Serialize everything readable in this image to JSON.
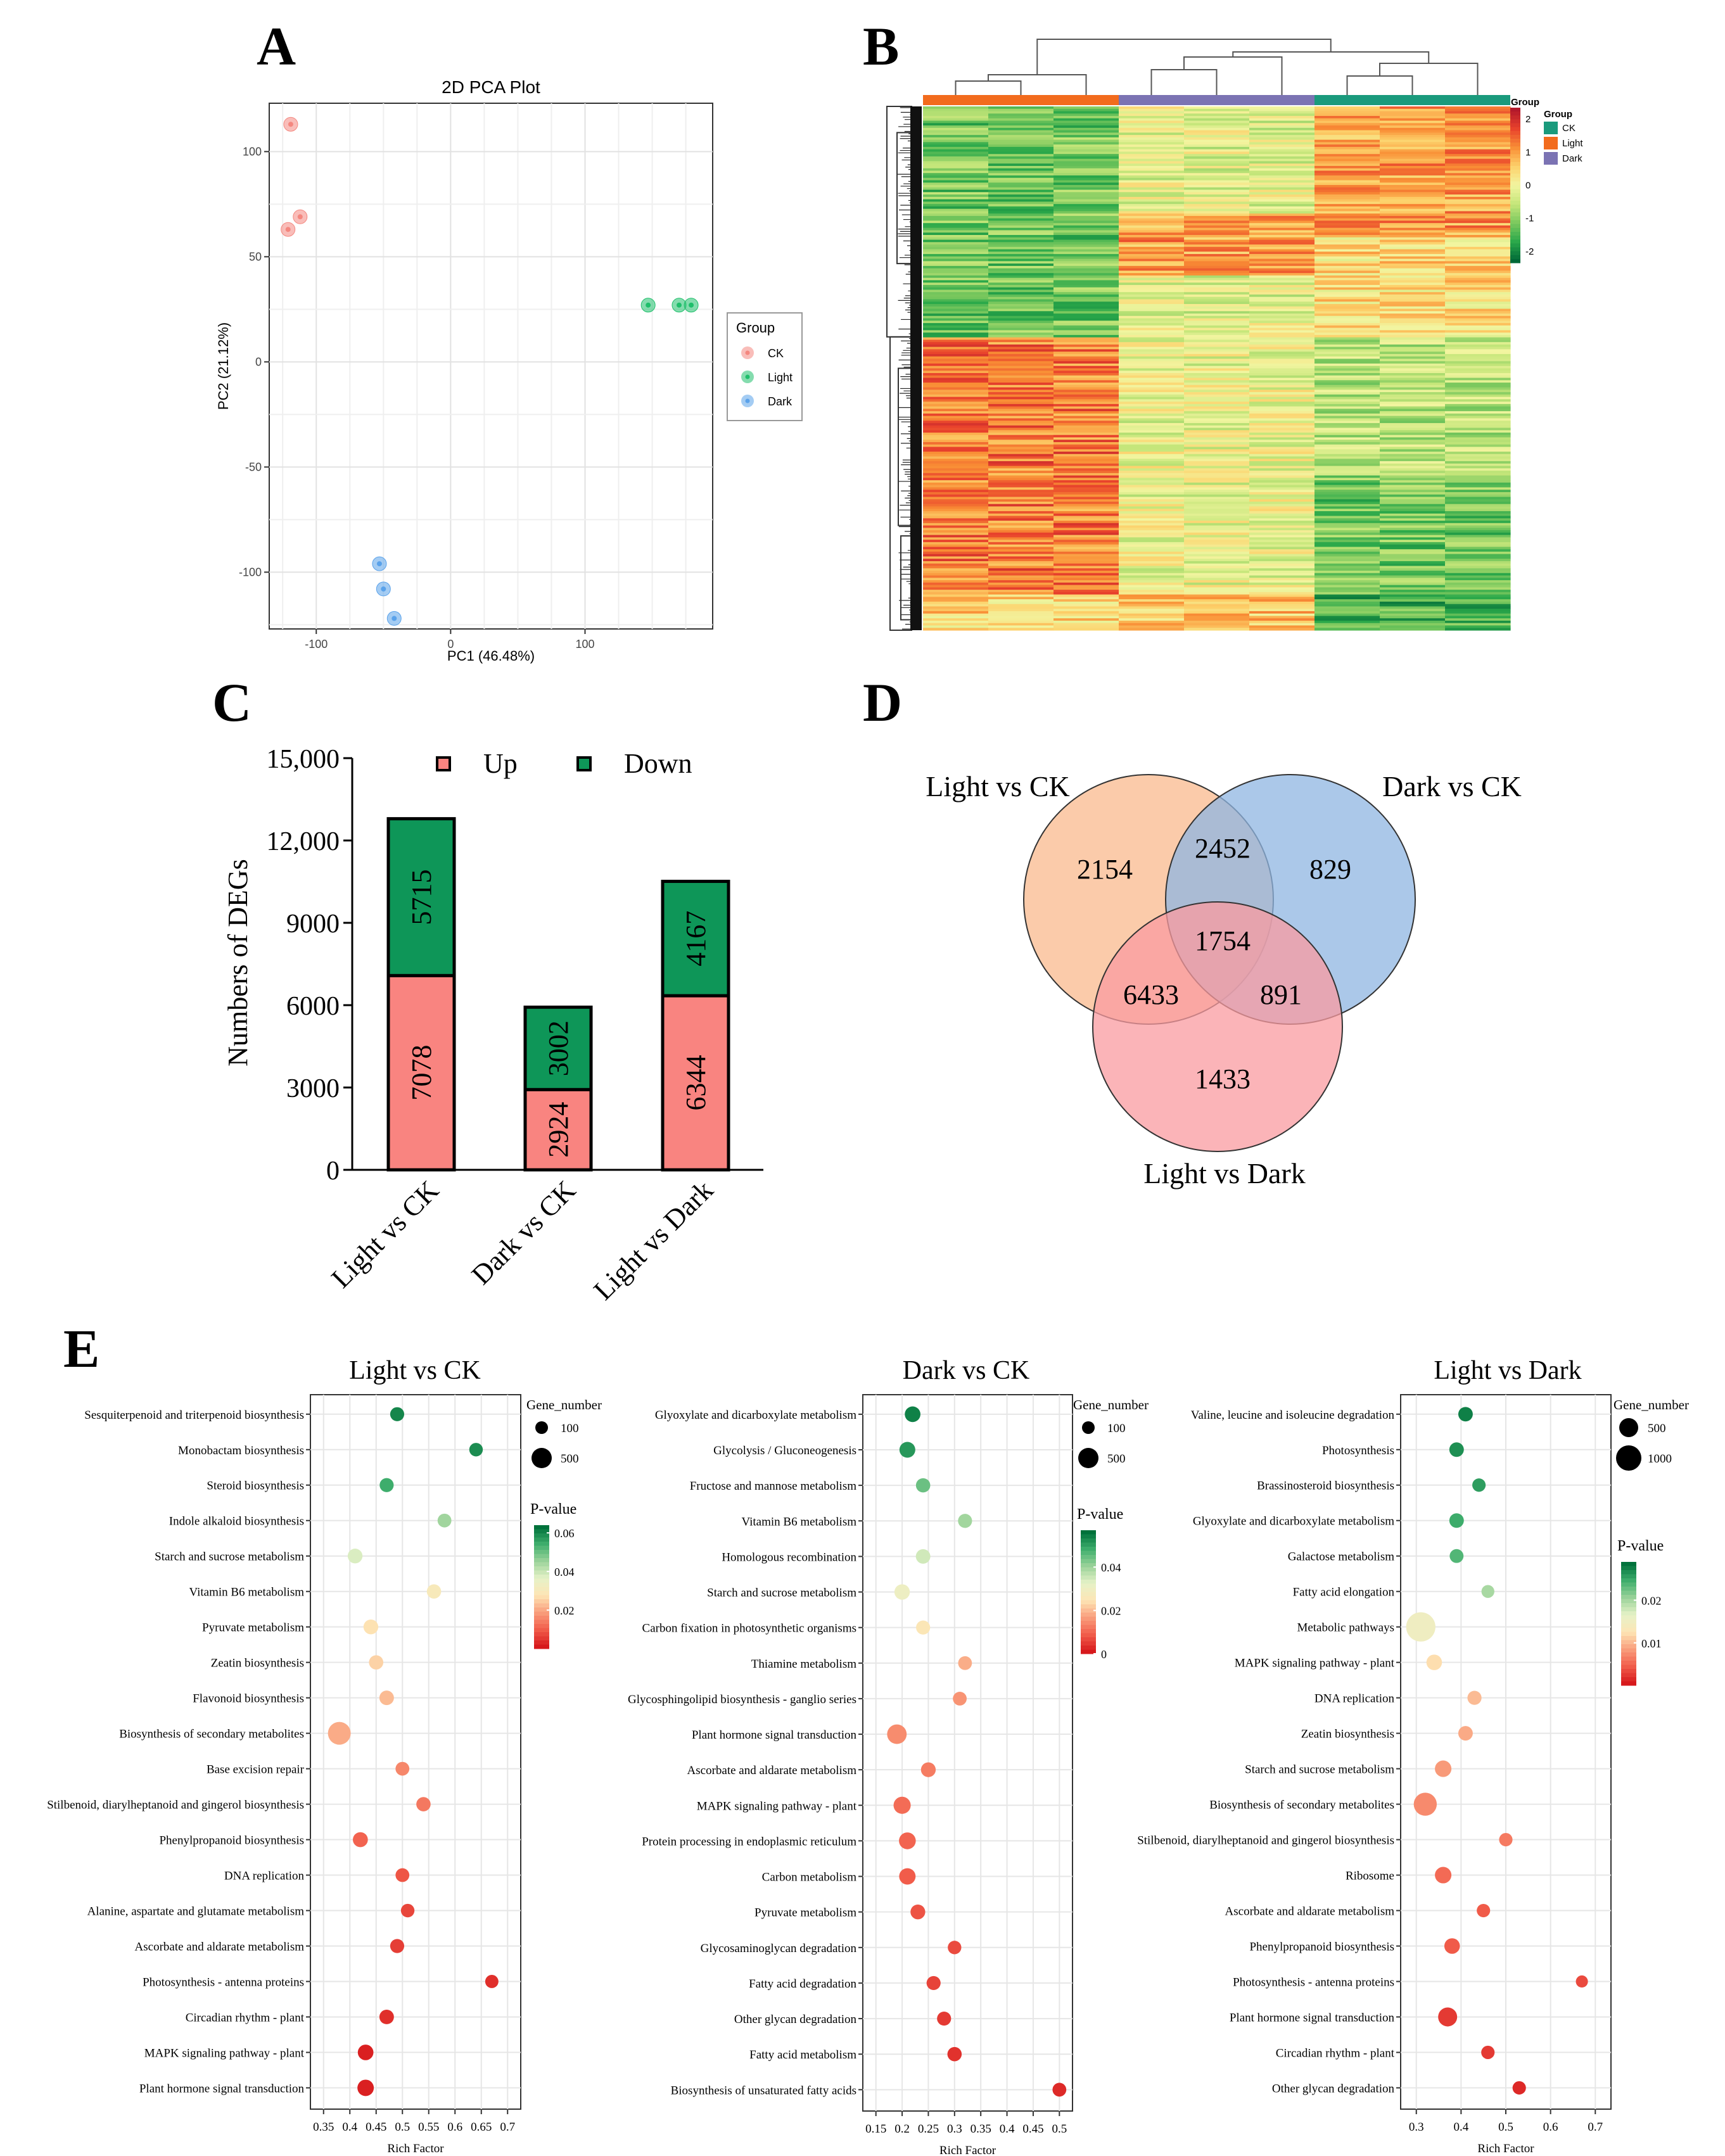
{
  "panel_letters": [
    "A",
    "B",
    "C",
    "D",
    "E"
  ],
  "chart_data": [
    {
      "panel": "A",
      "type": "scatter",
      "title": "2D PCA Plot",
      "xlabel": "PC1 (46.48%)",
      "ylabel": "PC2 (21.12%)",
      "xlim": [
        -135,
        195
      ],
      "ylim": [
        -127,
        123
      ],
      "xticks": [
        -100,
        0,
        100
      ],
      "yticks": [
        100,
        50,
        0,
        -50,
        -100
      ],
      "grid": true,
      "legend": {
        "title": "Group",
        "position": "right"
      },
      "series": [
        {
          "name": "CK",
          "color": "#f4877f",
          "points": [
            [
              -119,
              113
            ],
            [
              -112,
              69
            ],
            [
              -121,
              63
            ]
          ]
        },
        {
          "name": "Light",
          "color": "#1fbf6b",
          "points": [
            [
              147,
              27
            ],
            [
              170,
              27
            ],
            [
              179,
              27
            ]
          ]
        },
        {
          "name": "Dark",
          "color": "#5aa2ea",
          "points": [
            [
              -53,
              -96
            ],
            [
              -50,
              -108
            ],
            [
              -42,
              -122
            ]
          ]
        }
      ]
    },
    {
      "panel": "B",
      "type": "heatmap",
      "legend_title": "Group",
      "groups": [
        {
          "name": "CK",
          "color": "#1a9a7c"
        },
        {
          "name": "Light",
          "color": "#f26b1d"
        },
        {
          "name": "Dark",
          "color": "#7b73b3"
        }
      ],
      "column_group_order": [
        "Light",
        "Dark",
        "CK"
      ],
      "samples_per_group": 3,
      "scale_ticks": [
        2,
        1,
        0,
        -1,
        -2
      ],
      "scale_colors": [
        "#b2182b",
        "#e8412c",
        "#f98e35",
        "#fdd16b",
        "#f2f5a0",
        "#c5e67a",
        "#7bc85e",
        "#2aa84a",
        "#006837"
      ]
    },
    {
      "panel": "C",
      "type": "bar",
      "stacked": true,
      "ylabel": "Numbers of DEGs",
      "xlabel": "",
      "ylim": [
        0,
        15000
      ],
      "yticks": [
        "0",
        "3000",
        "6000",
        "9000",
        "12,000",
        "15,000"
      ],
      "categories": [
        "Light vs CK",
        "Dark vs CK",
        "Light vs Dark"
      ],
      "legend": {
        "position": "top"
      },
      "series": [
        {
          "name": "Up",
          "color": "#f98480",
          "values": [
            7078,
            2924,
            6344
          ]
        },
        {
          "name": "Down",
          "color": "#0e9658",
          "values": [
            5715,
            3002,
            4167
          ]
        }
      ]
    },
    {
      "panel": "D",
      "type": "venn",
      "sets": [
        {
          "name": "Light vs CK",
          "color": "#f9b98e"
        },
        {
          "name": "Dark vs CK",
          "color": "#8fb6e2"
        },
        {
          "name": "Light vs Dark",
          "color": "#f99ba0"
        }
      ],
      "regions": {
        "light_ck_only": "2154",
        "dark_ck_only": "829",
        "light_dark_only": "1433",
        "light_ck_and_dark_ck": "2452",
        "light_ck_and_light_dark": "6433",
        "dark_ck_and_light_dark": "891",
        "all_three": "1754"
      }
    },
    {
      "panel": "E",
      "type": "scatter",
      "title": "Light vs CK",
      "xlabel": "Rich Factor",
      "xlim": [
        0.325,
        0.725
      ],
      "xticks": [
        0.35,
        0.4,
        0.45,
        0.5,
        0.55,
        0.6,
        0.65,
        0.7
      ],
      "size_legend": {
        "title": "Gene_number",
        "values": [
          100,
          500
        ]
      },
      "color_legend": {
        "title": "P-value",
        "ticks": [
          0.06,
          0.04,
          0.02
        ],
        "range": [
          0,
          0.064
        ]
      },
      "terms": [
        "Sesquiterpenoid and triterpenoid biosynthesis",
        "Monobactam biosynthesis",
        "Steroid biosynthesis",
        "Indole alkaloid biosynthesis",
        "Starch and sucrose metabolism",
        "Vitamin B6 metabolism",
        "Pyruvate metabolism",
        "Zeatin biosynthesis",
        "Flavonoid biosynthesis",
        "Biosynthesis of secondary metabolites",
        "Base excision repair",
        "Stilbenoid, diarylheptanoid and gingerol biosynthesis",
        "Phenylpropanoid biosynthesis",
        "DNA replication",
        "Alanine, aspartate and glutamate metabolism",
        "Ascorbate and aldarate metabolism",
        "Photosynthesis - antenna proteins",
        "Circadian rhythm - plant",
        "MAPK signaling pathway - plant",
        "Plant hormone signal transduction"
      ],
      "rich_factor": [
        0.49,
        0.64,
        0.47,
        0.58,
        0.41,
        0.56,
        0.44,
        0.45,
        0.47,
        0.38,
        0.5,
        0.54,
        0.42,
        0.5,
        0.51,
        0.49,
        0.67,
        0.47,
        0.43,
        0.43
      ],
      "gene_number": [
        150,
        130,
        150,
        140,
        180,
        160,
        180,
        160,
        170,
        700,
        140,
        160,
        190,
        140,
        130,
        150,
        120,
        170,
        220,
        260
      ],
      "p_value": [
        0.061,
        0.06,
        0.055,
        0.045,
        0.038,
        0.03,
        0.027,
        0.025,
        0.022,
        0.02,
        0.015,
        0.013,
        0.01,
        0.008,
        0.006,
        0.005,
        0.003,
        0.003,
        0.001,
        0.001
      ]
    },
    {
      "panel": "E",
      "type": "scatter",
      "title": "Dark vs CK",
      "xlabel": "Rich Factor",
      "xlim": [
        0.125,
        0.525
      ],
      "xticks": [
        0.15,
        0.2,
        0.25,
        0.3,
        0.35,
        0.4,
        0.45,
        0.5
      ],
      "size_legend": {
        "title": "Gene_number",
        "values": [
          100,
          500
        ]
      },
      "color_legend": {
        "title": "P-value",
        "ticks": [
          0.04,
          0.02,
          0
        ],
        "range": [
          0,
          0.057
        ]
      },
      "terms": [
        "Glyoxylate and dicarboxylate metabolism",
        "Glycolysis / Gluconeogenesis",
        "Fructose and mannose metabolism",
        "Vitamin B6 metabolism",
        "Homologous recombination",
        "Starch and sucrose metabolism",
        "Carbon fixation in photosynthetic organisms",
        "Thiamine metabolism",
        "Glycosphingolipid biosynthesis - ganglio series",
        "Plant hormone signal transduction",
        "Ascorbate and aldarate metabolism",
        "MAPK signaling pathway - plant",
        "Protein processing in endoplasmic reticulum",
        "Carbon metabolism",
        "Pyruvate metabolism",
        "Glycosaminoglycan degradation",
        "Fatty acid degradation",
        "Other glycan degradation",
        "Fatty acid metabolism",
        "Biosynthesis of unsaturated fatty acids"
      ],
      "rich_factor": [
        0.22,
        0.21,
        0.24,
        0.32,
        0.24,
        0.2,
        0.24,
        0.32,
        0.31,
        0.19,
        0.25,
        0.2,
        0.21,
        0.21,
        0.23,
        0.3,
        0.26,
        0.28,
        0.3,
        0.5
      ],
      "gene_number": [
        220,
        230,
        160,
        150,
        170,
        210,
        150,
        140,
        140,
        450,
        180,
        300,
        280,
        260,
        180,
        130,
        150,
        150,
        160,
        140
      ],
      "p_value": [
        0.055,
        0.052,
        0.045,
        0.04,
        0.035,
        0.03,
        0.025,
        0.018,
        0.015,
        0.014,
        0.012,
        0.01,
        0.009,
        0.008,
        0.007,
        0.006,
        0.005,
        0.004,
        0.003,
        0.002
      ]
    },
    {
      "panel": "E",
      "type": "scatter",
      "title": "Light vs Dark",
      "xlabel": "Rich Factor",
      "xlim": [
        0.265,
        0.735
      ],
      "xticks": [
        0.3,
        0.4,
        0.5,
        0.6,
        0.7
      ],
      "size_legend": {
        "title": "Gene_number",
        "values": [
          500,
          1000
        ]
      },
      "color_legend": {
        "title": "P-value",
        "ticks": [
          0.02,
          0.01
        ],
        "range": [
          0,
          0.029
        ]
      },
      "terms": [
        "Valine, leucine and isoleucine degradation",
        "Photosynthesis",
        "Brassinosteroid biosynthesis",
        "Glyoxylate and dicarboxylate metabolism",
        "Galactose metabolism",
        "Fatty acid elongation",
        "Metabolic pathways",
        "MAPK signaling pathway - plant",
        "DNA replication",
        "Zeatin biosynthesis",
        "Starch and sucrose metabolism",
        "Biosynthesis of secondary metabolites",
        "Stilbenoid, diarylheptanoid and gingerol biosynthesis",
        "Ribosome",
        "Ascorbate and aldarate metabolism",
        "Phenylpropanoid biosynthesis",
        "Photosynthesis - antenna proteins",
        "Plant hormone signal transduction",
        "Circadian rhythm - plant",
        "Other glycan degradation"
      ],
      "rich_factor": [
        0.41,
        0.39,
        0.44,
        0.39,
        0.39,
        0.46,
        0.31,
        0.34,
        0.43,
        0.41,
        0.36,
        0.32,
        0.5,
        0.36,
        0.45,
        0.38,
        0.67,
        0.37,
        0.46,
        0.53
      ],
      "gene_number": [
        250,
        250,
        200,
        250,
        220,
        180,
        1400,
        300,
        230,
        250,
        350,
        800,
        200,
        350,
        200,
        300,
        150,
        500,
        200,
        200
      ],
      "p_value": [
        0.028,
        0.027,
        0.026,
        0.025,
        0.024,
        0.02,
        0.015,
        0.012,
        0.01,
        0.009,
        0.008,
        0.007,
        0.006,
        0.005,
        0.004,
        0.004,
        0.003,
        0.002,
        0.002,
        0.001
      ]
    }
  ]
}
